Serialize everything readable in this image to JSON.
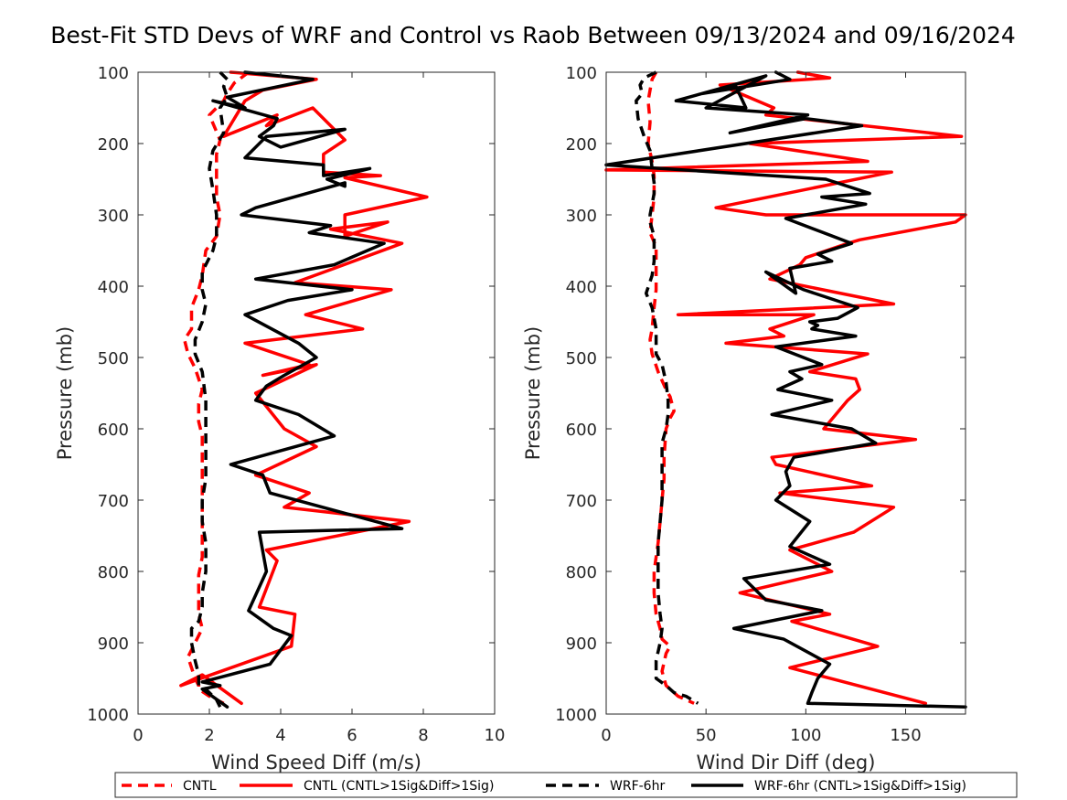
{
  "chart_data": {
    "title": "Best-Fit STD Devs of WRF and Control vs Raob Between 09/13/2024 and 09/16/2024",
    "legend": {
      "placement": "bottom",
      "entries": [
        {
          "label": "CNTL",
          "color": "#ff0000",
          "dashed": true
        },
        {
          "label": "CNTL (CNTL>1Sig&Diff>1Sig)",
          "color": "#ff0000",
          "dashed": false
        },
        {
          "label": "WRF-6hr",
          "color": "#000000",
          "dashed": true
        },
        {
          "label": "WRF-6hr (CNTL>1Sig&Diff>1Sig)",
          "color": "#000000",
          "dashed": false
        }
      ]
    },
    "panels": [
      {
        "type": "line",
        "xlabel": "Wind Speed Diff (m/s)",
        "ylabel": "Pressure (mb)",
        "xlim": [
          0,
          10
        ],
        "ylim": [
          100,
          1000
        ],
        "y_reversed": true,
        "xticks": [
          "0",
          "2",
          "4",
          "6",
          "8",
          "10"
        ],
        "yticks": [
          "100",
          "200",
          "300",
          "400",
          "500",
          "600",
          "700",
          "800",
          "900",
          "1000"
        ],
        "series": [
          {
            "name": "CNTL",
            "color": "#ff0000",
            "dashed": true,
            "x": [
              3.1,
              2.7,
              2.5,
              2.4,
              2.0,
              2.3,
              2.2,
              2.2,
              2.2,
              2.3,
              2.2,
              1.9,
              1.8,
              1.7,
              1.5,
              1.5,
              1.3,
              1.4,
              1.6,
              1.8,
              1.7,
              1.7,
              1.8,
              1.8,
              1.8,
              1.8,
              1.8,
              1.8,
              1.7,
              1.7,
              1.7,
              1.8,
              1.6,
              1.4,
              1.5,
              1.6,
              1.7,
              1.7,
              2.0,
              2.4
            ],
            "y": [
              100,
              115,
              130,
              140,
              160,
              195,
              215,
              245,
              275,
              300,
              330,
              350,
              385,
              405,
              430,
              460,
              475,
              495,
              515,
              545,
              565,
              590,
              610,
              640,
              670,
              705,
              730,
              780,
              805,
              830,
              860,
              880,
              900,
              920,
              935,
              950,
              960,
              965,
              975,
              985
            ]
          },
          {
            "name": "CNTL (CNTL>1Sig&Diff>1Sig)",
            "color": "#ff0000",
            "dashed": false,
            "x": [
              2.6,
              5.0,
              3.5,
              3.0,
              2.4,
              3.9,
              3.6,
              4.9,
              5.8,
              5.2,
              5.2,
              6.8,
              5.8,
              8.1,
              5.8,
              5.8,
              7.0,
              5.4,
              7.4,
              5.5,
              4.4,
              7.1,
              4.7,
              6.3,
              3.0,
              4.8,
              3.5,
              5.0,
              3.3,
              4.1,
              5.0,
              3.3,
              4.8,
              4.1,
              7.6,
              3.6,
              3.9,
              3.4,
              4.4,
              4.3,
              1.2,
              1.8,
              2.9
            ],
            "y": [
              100,
              110,
              125,
              140,
              190,
              160,
              175,
              150,
              195,
              215,
              240,
              245,
              248,
              275,
              300,
              330,
              310,
              320,
              340,
              375,
              395,
              405,
              440,
              460,
              480,
              510,
              525,
              510,
              550,
              600,
              625,
              665,
              690,
              710,
              730,
              770,
              785,
              850,
              860,
              905,
              960,
              945,
              985
            ]
          },
          {
            "name": "WRF-6hr",
            "color": "#000000",
            "dashed": true,
            "x": [
              2.3,
              2.5,
              2.4,
              2.5,
              2.3,
              2.4,
              2.1,
              2.0,
              2.1,
              2.2,
              2.2,
              2.1,
              1.8,
              1.8,
              1.9,
              1.8,
              1.6,
              1.6,
              1.8,
              1.9,
              1.9,
              1.9,
              1.9,
              1.8,
              1.8,
              1.9,
              1.9,
              1.9,
              1.8,
              1.8,
              1.7,
              1.5,
              1.5,
              1.6,
              1.7,
              1.7,
              1.9,
              2.1,
              2.2,
              2.3
            ],
            "y": [
              100,
              110,
              120,
              135,
              150,
              185,
              210,
              235,
              265,
              300,
              330,
              350,
              380,
              405,
              425,
              450,
              475,
              495,
              520,
              560,
              600,
              640,
              670,
              700,
              730,
              760,
              780,
              800,
              830,
              850,
              870,
              880,
              900,
              925,
              945,
              960,
              965,
              975,
              980,
              990
            ]
          },
          {
            "name": "WRF-6hr (CNTL>1Sig&Diff>1Sig)",
            "color": "#000000",
            "dashed": false,
            "x": [
              3.0,
              4.9,
              2.5,
              3.0,
              2.1,
              3.9,
              3.8,
              3.4,
              4.0,
              5.8,
              3.6,
              3.0,
              5.2,
              5.2,
              6.5,
              5.3,
              5.8,
              5.8,
              3.3,
              2.9,
              5.4,
              4.8,
              6.9,
              5.5,
              3.3,
              6.0,
              4.2,
              3.0,
              4.5,
              5.0,
              4.1,
              3.6,
              3.3,
              4.5,
              5.5,
              2.6,
              3.5,
              3.7,
              7.4,
              3.4,
              3.6,
              3.1,
              3.8,
              4.3,
              3.7,
              1.8,
              2.3,
              1.8,
              2.5
            ],
            "y": [
              100,
              110,
              135,
              150,
              140,
              165,
              175,
              190,
              205,
              180,
              190,
              220,
              230,
              245,
              235,
              250,
              260,
              255,
              290,
              300,
              315,
              325,
              340,
              370,
              390,
              405,
              420,
              440,
              480,
              500,
              525,
              540,
              560,
              580,
              610,
              650,
              665,
              690,
              740,
              745,
              800,
              855,
              880,
              890,
              930,
              955,
              960,
              965,
              990
            ]
          }
        ]
      },
      {
        "type": "line",
        "xlabel": "Wind Dir Diff (deg)",
        "ylabel": "Pressure (mb)",
        "xlim": [
          0,
          180
        ],
        "ylim": [
          100,
          1000
        ],
        "y_reversed": true,
        "xticks": [
          "0",
          "50",
          "100",
          "150"
        ],
        "yticks": [
          "100",
          "200",
          "300",
          "400",
          "500",
          "600",
          "700",
          "800",
          "900",
          "1000"
        ],
        "series": [
          {
            "name": "CNTL",
            "color": "#ff0000",
            "dashed": true,
            "x": [
              25,
              23,
              22,
              21,
              22,
              21,
              23,
              24,
              24,
              23,
              22,
              25,
              25,
              25,
              24,
              23,
              22,
              23,
              26,
              30,
              32,
              33,
              34,
              32,
              30,
              29,
              29,
              28,
              27,
              26,
              25,
              24,
              24,
              25,
              27,
              28,
              32,
              30,
              28,
              30,
              36,
              44
            ],
            "y": [
              100,
              110,
              125,
              140,
              170,
              200,
              225,
              245,
              275,
              300,
              325,
              345,
              375,
              405,
              430,
              460,
              475,
              495,
              520,
              545,
              555,
              565,
              575,
              585,
              600,
              640,
              670,
              700,
              730,
              760,
              780,
              800,
              830,
              860,
              880,
              895,
              905,
              915,
              940,
              960,
              975,
              985
            ]
          },
          {
            "name": "CNTL (CNTL>1Sig&Diff>1Sig)",
            "color": "#ff0000",
            "dashed": false,
            "x": [
              96,
              112,
              57,
              84,
              80,
              178,
              72,
              131,
              0,
              143,
              55,
              80,
              180,
              175,
              127,
              121,
              100,
              97,
              82,
              144,
              36,
              104,
              82,
              89,
              60,
              131,
              102,
              125,
              127,
              121,
              109,
              155,
              83,
              85,
              133,
              87,
              144,
              124,
              92,
              113,
              67,
              112,
              93,
              136,
              92,
              160
            ],
            "y": [
              100,
              108,
              118,
              150,
              160,
              190,
              200,
              225,
              237,
              240,
              290,
              300,
              300,
              310,
              335,
              340,
              360,
              370,
              390,
              425,
              440,
              440,
              460,
              470,
              480,
              495,
              520,
              530,
              545,
              560,
              600,
              615,
              640,
              650,
              680,
              690,
              710,
              745,
              770,
              800,
              830,
              860,
              870,
              905,
              935,
              985
            ]
          },
          {
            "name": "WRF-6hr",
            "color": "#000000",
            "dashed": true,
            "x": [
              25,
              19,
              17,
              18,
              15,
              16,
              19,
              22,
              23,
              24,
              24,
              23,
              22,
              22,
              24,
              24,
              24,
              23,
              20,
              23,
              25,
              25,
              25,
              28,
              30,
              31,
              31,
              30,
              28,
              28,
              28,
              28,
              27,
              26,
              26,
              26,
              26,
              27,
              28,
              27,
              25,
              25,
              30,
              34,
              40,
              46
            ],
            "y": [
              100,
              108,
              118,
              130,
              140,
              165,
              190,
              210,
              235,
              255,
              270,
              285,
              300,
              310,
              330,
              345,
              365,
              385,
              410,
              430,
              460,
              480,
              495,
              510,
              535,
              560,
              580,
              600,
              620,
              650,
              680,
              700,
              730,
              760,
              780,
              800,
              830,
              860,
              880,
              900,
              925,
              950,
              960,
              970,
              975,
              985
            ]
          },
          {
            "name": "WRF-6hr (CNTL>1Sig&Diff>1Sig)",
            "color": "#000000",
            "dashed": false,
            "x": [
              85,
              92,
              48,
              65,
              70,
              35,
              80,
              50,
              101,
              62,
              100,
              128,
              0,
              110,
              132,
              108,
              130,
              90,
              123,
              106,
              113,
              92,
              95,
              80,
              99,
              126,
              116,
              102,
              106,
              103,
              125,
              85,
              108,
              92,
              98,
              86,
              113,
              83,
              123,
              135,
              94,
              90,
              92,
              85,
              102,
              92,
              112,
              69,
              80,
              108,
              64,
              89,
              112,
              106,
              103,
              101,
              180
            ],
            "y": [
              100,
              110,
              130,
              120,
              150,
              140,
              105,
              150,
              160,
              185,
              165,
              175,
              230,
              250,
              270,
              275,
              285,
              305,
              340,
              355,
              365,
              375,
              410,
              380,
              405,
              430,
              445,
              450,
              455,
              460,
              470,
              485,
              510,
              520,
              530,
              545,
              560,
              580,
              600,
              620,
              640,
              660,
              680,
              700,
              730,
              765,
              790,
              810,
              840,
              855,
              880,
              895,
              930,
              950,
              970,
              985,
              990
            ]
          }
        ]
      }
    ]
  }
}
